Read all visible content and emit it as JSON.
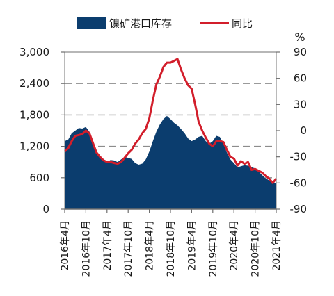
{
  "chart_data": {
    "type": "area+line",
    "title": "",
    "legend": {
      "placement": "top"
    },
    "y_right_unit": "%",
    "y_left": {
      "range": [
        0,
        3000
      ],
      "ticks": [
        "3,000",
        "2,400",
        "1,800",
        "1,200",
        "600",
        "0"
      ],
      "tick_values": [
        3000,
        2400,
        1800,
        1200,
        600,
        0
      ]
    },
    "y_right": {
      "range": [
        -90,
        90
      ],
      "ticks": [
        "90",
        "60",
        "30",
        "0",
        "-30",
        "-60",
        "-90"
      ],
      "tick_values": [
        90,
        60,
        30,
        0,
        -30,
        -60,
        -90
      ]
    },
    "grid": {
      "horizontal_dashed": true
    },
    "x_ticks": [
      "2016年4月",
      "2016年10月",
      "2017年4月",
      "2017年10月",
      "2018年4月",
      "2018年10月",
      "2019年4月",
      "2019年10月",
      "2020年4月",
      "2020年10月",
      "2021年4月"
    ],
    "x_tick_dates": [
      "2016-04",
      "2016-10",
      "2017-04",
      "2017-10",
      "2018-04",
      "2018-10",
      "2019-04",
      "2019-10",
      "2020-04",
      "2020-10",
      "2021-04"
    ],
    "x_range": [
      "2016-04",
      "2021-04"
    ],
    "series": [
      {
        "name": "镍矿港口库存",
        "axis": "left",
        "kind": "area",
        "color": "#0b3d6e",
        "points": [
          [
            "2016-04",
            1300
          ],
          [
            "2016-05",
            1330
          ],
          [
            "2016-06",
            1450
          ],
          [
            "2016-07",
            1500
          ],
          [
            "2016-08",
            1550
          ],
          [
            "2016-09",
            1540
          ],
          [
            "2016-10",
            1570
          ],
          [
            "2016-11",
            1480
          ],
          [
            "2016-12",
            1300
          ],
          [
            "2017-01",
            1100
          ],
          [
            "2017-02",
            1000
          ],
          [
            "2017-03",
            940
          ],
          [
            "2017-04",
            900
          ],
          [
            "2017-05",
            940
          ],
          [
            "2017-06",
            930
          ],
          [
            "2017-07",
            900
          ],
          [
            "2017-08",
            950
          ],
          [
            "2017-09",
            1000
          ],
          [
            "2017-10",
            980
          ],
          [
            "2017-11",
            960
          ],
          [
            "2017-12",
            880
          ],
          [
            "2018-01",
            850
          ],
          [
            "2018-02",
            870
          ],
          [
            "2018-03",
            950
          ],
          [
            "2018-04",
            1100
          ],
          [
            "2018-05",
            1300
          ],
          [
            "2018-06",
            1480
          ],
          [
            "2018-07",
            1620
          ],
          [
            "2018-08",
            1720
          ],
          [
            "2018-09",
            1780
          ],
          [
            "2018-10",
            1720
          ],
          [
            "2018-11",
            1650
          ],
          [
            "2018-12",
            1600
          ],
          [
            "2019-01",
            1530
          ],
          [
            "2019-02",
            1450
          ],
          [
            "2019-03",
            1350
          ],
          [
            "2019-04",
            1300
          ],
          [
            "2019-05",
            1330
          ],
          [
            "2019-06",
            1380
          ],
          [
            "2019-07",
            1400
          ],
          [
            "2019-08",
            1300
          ],
          [
            "2019-09",
            1250
          ],
          [
            "2019-10",
            1300
          ],
          [
            "2019-11",
            1400
          ],
          [
            "2019-12",
            1380
          ],
          [
            "2020-01",
            1250
          ],
          [
            "2020-02",
            1080
          ],
          [
            "2020-03",
            950
          ],
          [
            "2020-04",
            880
          ],
          [
            "2020-05",
            800
          ],
          [
            "2020-06",
            820
          ],
          [
            "2020-07",
            840
          ],
          [
            "2020-08",
            830
          ],
          [
            "2020-09",
            800
          ],
          [
            "2020-10",
            780
          ],
          [
            "2020-11",
            720
          ],
          [
            "2020-12",
            650
          ],
          [
            "2021-01",
            590
          ],
          [
            "2021-02",
            550
          ],
          [
            "2021-03",
            530
          ],
          [
            "2021-04",
            480
          ]
        ]
      },
      {
        "name": "同比",
        "axis": "right",
        "kind": "line",
        "color": "#d21e2b",
        "points": [
          [
            "2016-04",
            -24
          ],
          [
            "2016-05",
            -20
          ],
          [
            "2016-06",
            -12
          ],
          [
            "2016-07",
            -6
          ],
          [
            "2016-08",
            -5
          ],
          [
            "2016-09",
            -4
          ],
          [
            "2016-10",
            0
          ],
          [
            "2016-11",
            -3
          ],
          [
            "2016-12",
            -14
          ],
          [
            "2017-01",
            -25
          ],
          [
            "2017-02",
            -30
          ],
          [
            "2017-03",
            -34
          ],
          [
            "2017-04",
            -36
          ],
          [
            "2017-05",
            -36
          ],
          [
            "2017-06",
            -37
          ],
          [
            "2017-07",
            -38
          ],
          [
            "2017-08",
            -36
          ],
          [
            "2017-09",
            -31
          ],
          [
            "2017-10",
            -26
          ],
          [
            "2017-11",
            -22
          ],
          [
            "2017-12",
            -15
          ],
          [
            "2018-01",
            -10
          ],
          [
            "2018-02",
            -3
          ],
          [
            "2018-03",
            2
          ],
          [
            "2018-04",
            14
          ],
          [
            "2018-05",
            35
          ],
          [
            "2018-06",
            53
          ],
          [
            "2018-07",
            62
          ],
          [
            "2018-08",
            73
          ],
          [
            "2018-09",
            78
          ],
          [
            "2018-10",
            78
          ],
          [
            "2018-11",
            80
          ],
          [
            "2018-12",
            82
          ],
          [
            "2019-01",
            70
          ],
          [
            "2019-02",
            60
          ],
          [
            "2019-03",
            52
          ],
          [
            "2019-04",
            48
          ],
          [
            "2019-05",
            30
          ],
          [
            "2019-06",
            10
          ],
          [
            "2019-07",
            0
          ],
          [
            "2019-08",
            -8
          ],
          [
            "2019-09",
            -15
          ],
          [
            "2019-10",
            -18
          ],
          [
            "2019-11",
            -12
          ],
          [
            "2019-12",
            -12
          ],
          [
            "2020-01",
            -13
          ],
          [
            "2020-02",
            -22
          ],
          [
            "2020-03",
            -30
          ],
          [
            "2020-04",
            -32
          ],
          [
            "2020-05",
            -40
          ],
          [
            "2020-06",
            -35
          ],
          [
            "2020-07",
            -38
          ],
          [
            "2020-08",
            -36
          ],
          [
            "2020-09",
            -45
          ],
          [
            "2020-10",
            -44
          ],
          [
            "2020-11",
            -46
          ],
          [
            "2020-12",
            -48
          ],
          [
            "2021-01",
            -52
          ],
          [
            "2021-02",
            -55
          ],
          [
            "2021-03",
            -60
          ],
          [
            "2021-04",
            -55
          ]
        ]
      }
    ]
  }
}
